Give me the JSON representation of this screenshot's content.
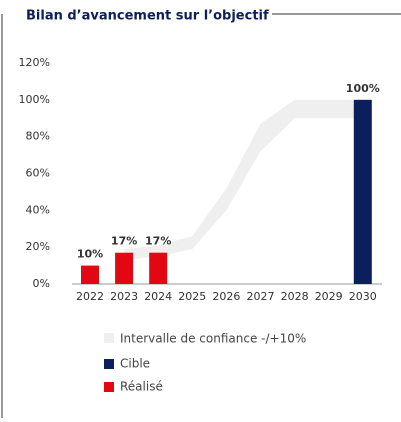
{
  "chart_data": {
    "type": "bar",
    "title": "Bilan d’avancement sur l’objectif",
    "categories": [
      "2022",
      "2023",
      "2024",
      "2025",
      "2026",
      "2027",
      "2028",
      "2029",
      "2030"
    ],
    "ylim": [
      0,
      120
    ],
    "yticks": [
      {
        "value": 0,
        "label": "0%"
      },
      {
        "value": 20,
        "label": "20%"
      },
      {
        "value": 40,
        "label": "40%"
      },
      {
        "value": 60,
        "label": "60%"
      },
      {
        "value": 80,
        "label": "80%"
      },
      {
        "value": 100,
        "label": "100%"
      },
      {
        "value": 120,
        "label": "120%"
      }
    ],
    "band": {
      "name": "Intervalle de confiance -/+10%",
      "color": "#efefef",
      "lower": [
        null,
        13,
        15,
        19,
        40,
        72,
        90,
        90,
        90
      ],
      "upper": [
        null,
        19,
        21,
        26,
        52,
        87,
        100,
        100,
        100
      ]
    },
    "series": [
      {
        "name": "Cible",
        "color": "#0b1f5c",
        "values": [
          null,
          null,
          null,
          null,
          null,
          null,
          null,
          null,
          100
        ],
        "value_labels": [
          null,
          null,
          null,
          null,
          null,
          null,
          null,
          null,
          "100%"
        ]
      },
      {
        "name": "Réalisé",
        "color": "#e30613",
        "values": [
          10,
          17,
          17,
          null,
          null,
          null,
          null,
          null,
          null
        ],
        "value_labels": [
          "10%",
          "17%",
          "17%",
          null,
          null,
          null,
          null,
          null,
          null
        ]
      }
    ]
  }
}
